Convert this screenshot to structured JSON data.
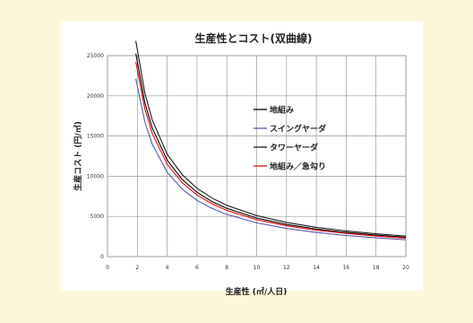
{
  "chart_data": {
    "type": "line",
    "title": "生産性とコスト(双曲線)",
    "xlabel": "生産性 (㎡/人日)",
    "ylabel": "生産コスト (円/㎡)",
    "xlim": [
      0,
      20
    ],
    "ylim": [
      0,
      25000
    ],
    "xticks": [
      0,
      2,
      4,
      6,
      8,
      10,
      12,
      14,
      16,
      18,
      20
    ],
    "xtick_labels": [
      "0",
      "2",
      "4",
      "6",
      "8",
      "10",
      "12",
      "14",
      "16",
      "18",
      "20"
    ],
    "yticks": [
      0,
      5000,
      10000,
      15000,
      20000,
      25000
    ],
    "ytick_labels": [
      "0",
      "5000",
      "10000",
      "15000",
      "20000",
      "25000"
    ],
    "grid": true,
    "legend_position": "center-right",
    "x": [
      1.9,
      2.5,
      3,
      4,
      5,
      6,
      7,
      8,
      10,
      12,
      14,
      16,
      18,
      20
    ],
    "series": [
      {
        "name": "地組み",
        "color": "#000000",
        "values": [
          25263,
          19200,
          16000,
          12000,
          9600,
          8000,
          6857,
          6000,
          4800,
          4000,
          3429,
          3000,
          2667,
          2400
        ]
      },
      {
        "name": "スイングヤーダ",
        "color": "#5a5aa8",
        "values": [
          22105,
          16800,
          14000,
          10500,
          8400,
          7000,
          6000,
          5250,
          4200,
          3500,
          3000,
          2625,
          2333,
          2100
        ]
      },
      {
        "name": "タワーヤーダ",
        "color": "#1a1a1a",
        "values": [
          26842,
          20400,
          17000,
          12750,
          10200,
          8500,
          7286,
          6375,
          5100,
          4250,
          3643,
          3188,
          2833,
          2550
        ]
      },
      {
        "name": "地組み／急勾り",
        "color": "#e01010",
        "values": [
          24211,
          18400,
          15333,
          11500,
          9200,
          7667,
          6571,
          5750,
          4600,
          3833,
          3286,
          2875,
          2556,
          2300
        ]
      }
    ]
  }
}
